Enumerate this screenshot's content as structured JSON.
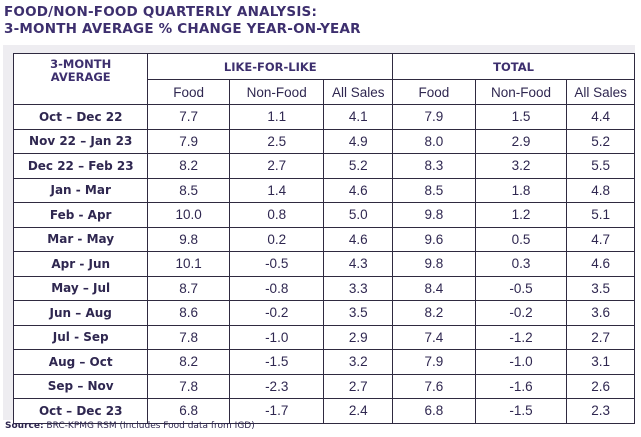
{
  "title_line1": "FOOD/NON-FOOD QUARTERLY ANALYSIS:",
  "title_line2": "3-MONTH AVERAGE % CHANGE YEAR-ON-YEAR",
  "header": {
    "corner": "3-MONTH AVERAGE",
    "group1": "LIKE-FOR-LIKE",
    "group2": "TOTAL",
    "cols": [
      "Food",
      "Non-Food",
      "All Sales",
      "Food",
      "Non-Food",
      "All Sales"
    ]
  },
  "source_label": "Source:",
  "source_text": " BRC-KPMG RSM (Includes Food data from IGD)",
  "chart_data": {
    "type": "table",
    "title": "FOOD/NON-FOOD QUARTERLY ANALYSIS: 3-MONTH AVERAGE % CHANGE YEAR-ON-YEAR",
    "columns": [
      "3-MONTH AVERAGE",
      "LIKE-FOR-LIKE Food",
      "LIKE-FOR-LIKE Non-Food",
      "LIKE-FOR-LIKE All Sales",
      "TOTAL Food",
      "TOTAL Non-Food",
      "TOTAL All Sales"
    ],
    "rows": [
      [
        "Oct – Dec 22",
        "7.7",
        "1.1",
        "4.1",
        "7.9",
        "1.5",
        "4.4"
      ],
      [
        "Nov 22 – Jan 23",
        "7.9",
        "2.5",
        "4.9",
        "8.0",
        "2.9",
        "5.2"
      ],
      [
        "Dec 22 – Feb 23",
        "8.2",
        "2.7",
        "5.2",
        "8.3",
        "3.2",
        "5.5"
      ],
      [
        "Jan - Mar",
        "8.5",
        "1.4",
        "4.6",
        "8.5",
        "1.8",
        "4.8"
      ],
      [
        "Feb - Apr",
        "10.0",
        "0.8",
        "5.0",
        "9.8",
        "1.2",
        "5.1"
      ],
      [
        "Mar - May",
        "9.8",
        "0.2",
        "4.6",
        "9.6",
        "0.5",
        "4.7"
      ],
      [
        "Apr - Jun",
        "10.1",
        "-0.5",
        "4.3",
        "9.8",
        "0.3",
        "4.6"
      ],
      [
        "May – Jul",
        "8.7",
        "-0.8",
        "3.3",
        "8.4",
        "-0.5",
        "3.5"
      ],
      [
        "Jun – Aug",
        "8.6",
        "-0.2",
        "3.5",
        "8.2",
        "-0.2",
        "3.6"
      ],
      [
        "Jul - Sep",
        "7.8",
        "-1.0",
        "2.9",
        "7.4",
        "-1.2",
        "2.7"
      ],
      [
        "Aug – Oct",
        "8.2",
        "-1.5",
        "3.2",
        "7.9",
        "-1.0",
        "3.1"
      ],
      [
        "Sep – Nov",
        "7.8",
        "-2.3",
        "2.7",
        "7.6",
        "-1.6",
        "2.6"
      ],
      [
        "Oct – Dec 23",
        "6.8",
        "-1.7",
        "2.4",
        "6.8",
        "-1.5",
        "2.3"
      ]
    ]
  }
}
